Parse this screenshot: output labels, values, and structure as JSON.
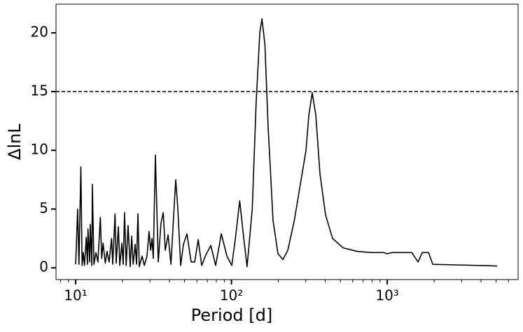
{
  "chart_data": {
    "type": "line",
    "xlabel": "Period [d]",
    "ylabel": "ΔlnL",
    "xscale": "log",
    "xlim": [
      7.48,
      6918
    ],
    "ylim": [
      -1.0,
      22.44
    ],
    "xticks": [
      {
        "value": 10,
        "label": "10¹"
      },
      {
        "value": 100,
        "label": "10²"
      },
      {
        "value": 1000,
        "label": "10³"
      }
    ],
    "xticks_minor": [
      8,
      9,
      20,
      30,
      40,
      50,
      60,
      70,
      80,
      90,
      200,
      300,
      400,
      500,
      600,
      700,
      800,
      900,
      2000,
      3000,
      4000,
      5000,
      6000
    ],
    "yticks": [
      0,
      5,
      10,
      15,
      20
    ],
    "hline": 15,
    "hline_color": "#000000",
    "x": [
      10.0,
      10.3,
      10.5,
      10.8,
      11.0,
      11.2,
      11.4,
      11.7,
      11.9,
      12.0,
      12.3,
      12.4,
      12.7,
      12.8,
      13.1,
      13.5,
      13.9,
      14.4,
      14.7,
      15.0,
      15.5,
      15.9,
      16.4,
      17.0,
      17.3,
      17.9,
      18.2,
      18.8,
      19.2,
      19.8,
      20.2,
      20.6,
      21.1,
      21.7,
      22.4,
      22.9,
      23.4,
      24.1,
      24.6,
      25.1,
      25.6,
      26.7,
      27.6,
      28.7,
      29.6,
      30.3,
      30.9,
      31.5,
      32.5,
      33.9,
      35.3,
      36.5,
      37.6,
      39.2,
      40.9,
      43.0,
      43.9,
      45.3,
      47.2,
      49.2,
      51.8,
      55.1,
      58.1,
      61.2,
      64.4,
      68.5,
      73.7,
      79.2,
      86.1,
      93.5,
      100.5,
      106,
      113,
      120,
      126,
      136,
      144,
      152,
      157,
      164,
      172,
      185,
      199,
      214,
      230,
      253,
      280,
      301,
      314,
      330,
      348,
      370,
      402,
      446,
      521,
      641,
      788,
      950,
      1000,
      1075,
      1437,
      1577,
      1678,
      1842,
      1960,
      2729,
      4580,
      5077
    ],
    "series": [
      {
        "color": "#000000",
        "values": [
          0.3,
          5.0,
          0.3,
          8.6,
          0.2,
          1.3,
          0.2,
          2.6,
          0.3,
          3.3,
          0.5,
          3.7,
          0.2,
          7.1,
          0.3,
          1.3,
          0.5,
          4.3,
          0.8,
          2.1,
          0.4,
          1.4,
          0.5,
          2.5,
          0.3,
          4.6,
          0.4,
          3.5,
          0.2,
          2.1,
          0.3,
          4.7,
          0.2,
          3.6,
          0.1,
          2.7,
          0.3,
          2.0,
          0.3,
          4.6,
          0.1,
          1.0,
          0.2,
          1.0,
          3.1,
          1.5,
          2.5,
          0.8,
          9.6,
          0.5,
          3.8,
          4.7,
          1.5,
          2.8,
          0.3,
          5.5,
          7.5,
          5.0,
          0.2,
          2.0,
          2.9,
          0.5,
          0.5,
          2.4,
          0.2,
          1.1,
          1.9,
          0.2,
          2.9,
          1.0,
          0.2,
          2.5,
          5.7,
          2.5,
          0.1,
          5.0,
          14.0,
          20.0,
          21.2,
          19.0,
          12.0,
          4.0,
          1.2,
          0.7,
          1.5,
          4.0,
          7.5,
          10.0,
          13.0,
          14.9,
          13.0,
          8.0,
          4.5,
          2.5,
          1.7,
          1.4,
          1.3,
          1.3,
          1.2,
          1.3,
          1.3,
          0.5,
          1.3,
          1.3,
          0.3,
          0.25,
          0.18,
          0.15
        ]
      }
    ]
  }
}
